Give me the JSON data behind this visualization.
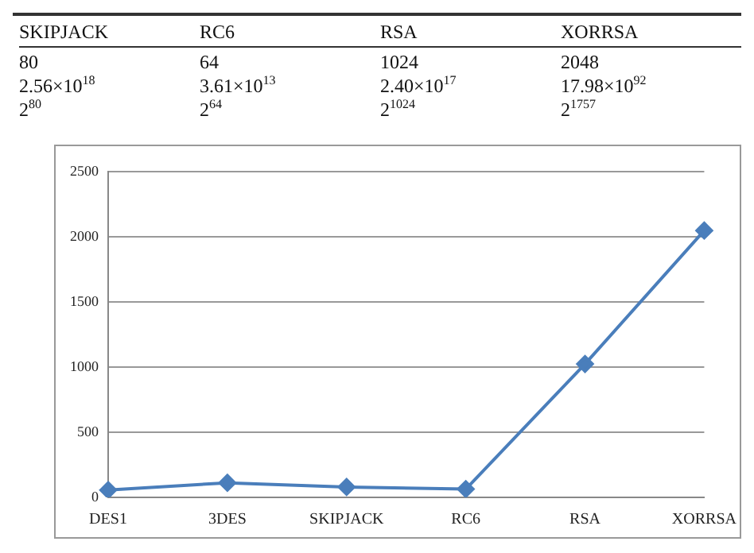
{
  "chart_data": {
    "type": "line",
    "categories": [
      "DES1",
      "3DES",
      "SKIPJACK",
      "RC6",
      "RSA",
      "XORRSA"
    ],
    "series": [
      {
        "color": "#4a7ebb",
        "values": [
          56,
          112,
          80,
          64,
          1024,
          2048
        ]
      }
    ],
    "ylim": [
      0,
      2500
    ],
    "yticks": [
      0,
      500,
      1000,
      1500,
      2000,
      2500
    ],
    "grid": "y",
    "legend": false,
    "marker": "diamond",
    "line_style": "solid",
    "annotations": [
      "SKIPJACK",
      "RC6",
      "RSA",
      "XORRSA",
      "80",
      "64",
      "1024",
      "2048",
      "2.56×10$^{18}$",
      "3.61×10$^{13}$",
      "2.40×10$^{17}$",
      "17.98×10$^{92}$",
      "2$^{80}$",
      "2$^{64}$",
      "2$^{1024}$",
      "2$^{1757}$"
    ]
  }
}
